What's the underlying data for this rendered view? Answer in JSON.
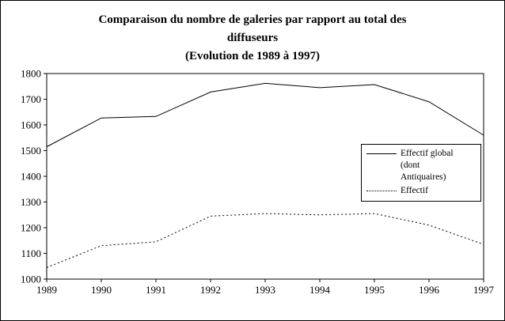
{
  "title": {
    "line1": "Comparaison du nombre de galeries par rapport au total des",
    "line2": "diffuseurs",
    "line3": "(Evolution de 1989 à 1997)"
  },
  "chart_data": {
    "type": "line",
    "categories": [
      "1989",
      "1990",
      "1991",
      "1992",
      "1993",
      "1994",
      "1995",
      "1996",
      "1997"
    ],
    "series": [
      {
        "name": "Effectif global (dont Antiquaires)",
        "style": "solid",
        "values": [
          1515,
          1627,
          1633,
          1728,
          1762,
          1745,
          1757,
          1690,
          1560
        ]
      },
      {
        "name": "Effectif",
        "style": "dotted",
        "values": [
          1045,
          1130,
          1145,
          1245,
          1255,
          1250,
          1255,
          1210,
          1135
        ]
      }
    ],
    "ylim": [
      1000,
      1800
    ],
    "y_ticks": [
      1000,
      1100,
      1200,
      1300,
      1400,
      1500,
      1600,
      1700,
      1800
    ],
    "grid": false,
    "legend": {
      "position": "right-inside",
      "entries": [
        {
          "style": "solid",
          "label_lines": [
            "Effectif global",
            "(dont",
            "Antiquaires)"
          ]
        },
        {
          "style": "dotted",
          "label_lines": [
            "Effectif"
          ]
        }
      ]
    },
    "colors": {
      "line": "#000000",
      "background": "#ffffff",
      "border": "#000000"
    }
  }
}
